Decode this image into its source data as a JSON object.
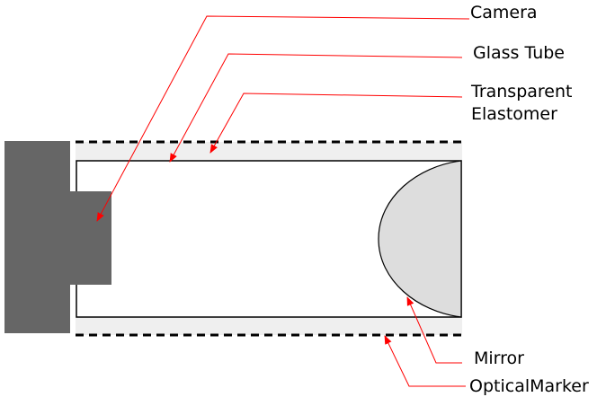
{
  "labels": {
    "camera": "Camera",
    "glass_tube": "Glass Tube",
    "transparent": "Transparent",
    "elastomer": "Elastomer",
    "mirror": "Mirror",
    "optical_marker": "OpticalMarker"
  },
  "colors": {
    "camera_body": "#666666",
    "elastomer_band": "#efefef",
    "mirror_fill": "#dddddd",
    "leader_line": "#ff0000",
    "outline": "#000000",
    "background": "#ffffff"
  },
  "icons": {
    "leader_arrowhead": "arrowhead"
  }
}
